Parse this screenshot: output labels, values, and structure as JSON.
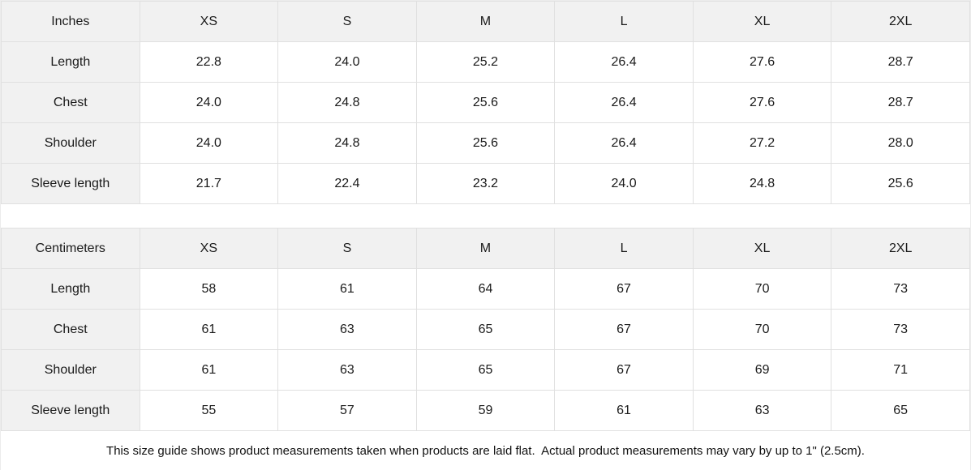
{
  "colors": {
    "header_bg": "#f1f1f1",
    "border": "#e0e0e0",
    "text": "#1a1a1a"
  },
  "tables": [
    {
      "unit_label": "Inches",
      "sizes": [
        "XS",
        "S",
        "M",
        "L",
        "XL",
        "2XL"
      ],
      "rows": [
        {
          "label": "Length",
          "values": [
            "22.8",
            "24.0",
            "25.2",
            "26.4",
            "27.6",
            "28.7"
          ]
        },
        {
          "label": "Chest",
          "values": [
            "24.0",
            "24.8",
            "25.6",
            "26.4",
            "27.6",
            "28.7"
          ]
        },
        {
          "label": "Shoulder",
          "values": [
            "24.0",
            "24.8",
            "25.6",
            "26.4",
            "27.2",
            "28.0"
          ]
        },
        {
          "label": "Sleeve length",
          "values": [
            "21.7",
            "22.4",
            "23.2",
            "24.0",
            "24.8",
            "25.6"
          ]
        }
      ]
    },
    {
      "unit_label": "Centimeters",
      "sizes": [
        "XS",
        "S",
        "M",
        "L",
        "XL",
        "2XL"
      ],
      "rows": [
        {
          "label": "Length",
          "values": [
            "58",
            "61",
            "64",
            "67",
            "70",
            "73"
          ]
        },
        {
          "label": "Chest",
          "values": [
            "61",
            "63",
            "65",
            "67",
            "70",
            "73"
          ]
        },
        {
          "label": "Shoulder",
          "values": [
            "61",
            "63",
            "65",
            "67",
            "69",
            "71"
          ]
        },
        {
          "label": "Sleeve length",
          "values": [
            "55",
            "57",
            "59",
            "61",
            "63",
            "65"
          ]
        }
      ]
    }
  ],
  "footer": {
    "note": "This size guide shows product measurements taken when products are laid flat.  Actual product measurements may vary by up to 1\" (2.5cm)."
  }
}
